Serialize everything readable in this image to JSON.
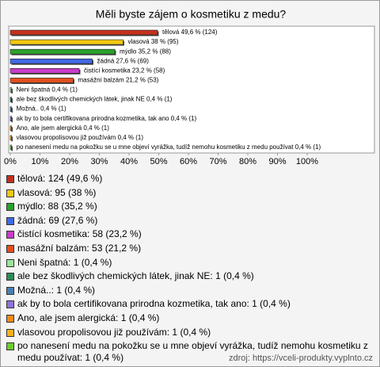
{
  "chart_data": {
    "type": "bar",
    "title": "Měli byste zájem o kosmetiku z medu?",
    "categories": [
      "tělová",
      "vlasová",
      "mýdlo",
      "žádná",
      "čistící kosmetika",
      "masážní balzám",
      "Neni špatná",
      "ale bez škodlivých chemických látek, jinak NE",
      "Možná..",
      "ak by to bola certifikovana prirodna kozmetika, tak ano",
      "Ano, ale jsem alergická",
      "vlasovou propolisovou již používám",
      "po nanesení medu na pokožku se u mne objeví vyrážka, tudíž nemohu kosmetiku z medu používat"
    ],
    "values": [
      49.6,
      38,
      35.2,
      27.6,
      23.2,
      21.2,
      0.4,
      0.4,
      0.4,
      0.4,
      0.4,
      0.4,
      0.4
    ],
    "value_labels": [
      "tělová 49,6 % (124)",
      "vlasová 38 % (95)",
      "mýdlo 35,2 % (88)",
      "žádná 27,6 % (69)",
      "čistící kosmetika 23,2 % (58)",
      "masážní balzám 21,2 % (53)",
      "Neni špatná 0,4 % (1)",
      "ale bez škodlivých chemických látek, jinak NE 0,4 % (1)",
      "Možná.. 0,4 % (1)",
      "ak by to bola certifikovana prirodna kozmetika, tak ano 0,4 % (1)",
      "Ano, ale jsem alergická 0,4 % (1)",
      "vlasovou propolisovou již používám 0,4 % (1)",
      "po nanesení medu na pokožku se u mne objeví vyrážka, tudíž nemohu kosmetiku z medu používat 0,4 % (1)"
    ],
    "legend_labels": [
      "tělová: 124 (49,6 %)",
      "vlasová: 95 (38 %)",
      "mýdlo: 88 (35,2 %)",
      "žádná: 69 (27,6 %)",
      "čistící kosmetika: 58 (23,2 %)",
      "masážní balzám: 53 (21,2 %)",
      "Neni špatná: 1 (0,4 %)",
      "ale bez škodlivých chemických látek, jinak NE: 1 (0,4 %)",
      "Možná..: 1 (0,4 %)",
      "ak by to bola certifikovana prirodna kozmetika, tak ano: 1 (0,4 %)",
      "Ano, ale jsem alergická: 1 (0,4 %)",
      "vlasovou propolisovou již používám: 1 (0,4 %)",
      "po nanesení medu na pokožku se u mne objeví vyrážka, tudíž nemohu kosmetiku z medu používat: 1 (0,4 %)"
    ],
    "colors": [
      "#c3301c",
      "#f2c811",
      "#2aa22a",
      "#4169e1",
      "#c83cc8",
      "#e2501e",
      "#9be59b",
      "#2e8b57",
      "#4a7fb5",
      "#9370db",
      "#f08a1c",
      "#f7b21e",
      "#6ccc2e"
    ],
    "xlim": [
      0,
      100
    ],
    "xticks": [
      {
        "value": 0,
        "label": "0%"
      },
      {
        "value": 10,
        "label": "10%"
      },
      {
        "value": 20,
        "label": "20%"
      },
      {
        "value": 30,
        "label": "30%"
      },
      {
        "value": 40,
        "label": "40%"
      },
      {
        "value": 50,
        "label": "50%"
      },
      {
        "value": 60,
        "label": "60%"
      },
      {
        "value": 70,
        "label": "70%"
      },
      {
        "value": 80,
        "label": "80%"
      },
      {
        "value": 90,
        "label": "90%"
      },
      {
        "value": 100,
        "label": "100%"
      }
    ],
    "grid": false,
    "source": "zdroj: https://vceli-produkty.vyplnto.cz"
  }
}
